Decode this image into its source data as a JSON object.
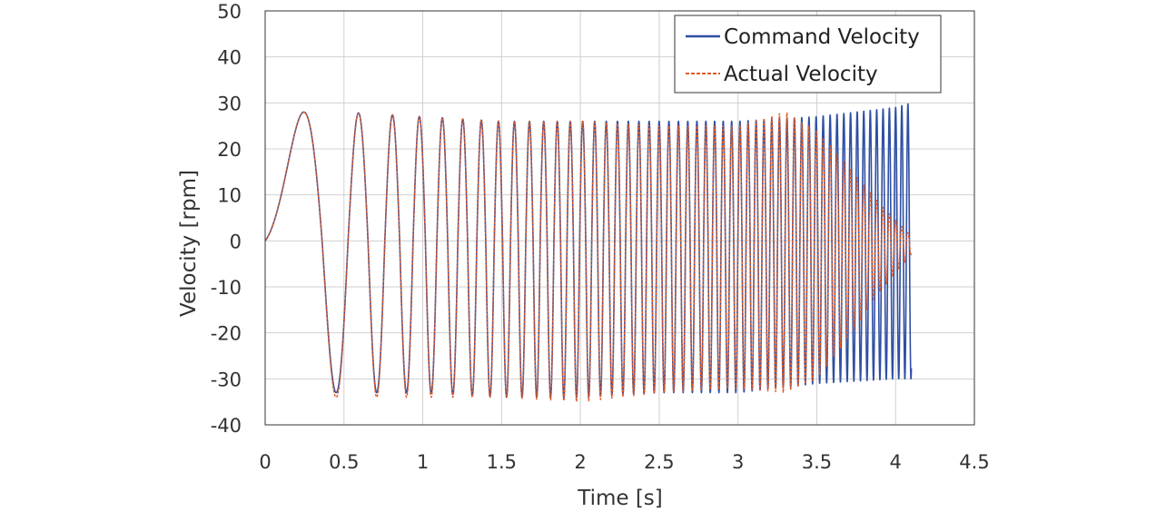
{
  "chart_data": {
    "type": "line",
    "xlabel": "Time [s]",
    "ylabel": "Velocity [rpm]",
    "xlim": [
      0,
      4.5
    ],
    "ylim": [
      -40,
      50
    ],
    "xticks": [
      "0",
      "0.5",
      "1",
      "1.5",
      "2",
      "2.5",
      "3",
      "3.5",
      "4",
      "4.5"
    ],
    "yticks": [
      "50",
      "40",
      "30",
      "20",
      "10",
      "0",
      "-10",
      "-20",
      "-30",
      "-40"
    ],
    "grid": true,
    "legend_position": "top-right",
    "duration": 4.1,
    "series": [
      {
        "name": "Command Velocity",
        "color": "#2E4FA3",
        "style": "solid",
        "envelope_time": [
          0,
          0.5,
          1.0,
          1.5,
          2.0,
          2.5,
          3.0,
          3.5,
          4.0,
          4.1
        ],
        "envelope_max": [
          28,
          28,
          27,
          26,
          26,
          26,
          26,
          27,
          29,
          30
        ],
        "envelope_min": [
          -33,
          -33,
          -33,
          -34,
          -34,
          -33,
          -33,
          -31,
          -30,
          -30
        ]
      },
      {
        "name": "Actual Velocity",
        "color": "#E05A26",
        "style": "dashed",
        "envelope_time": [
          0,
          0.5,
          1.0,
          1.5,
          2.0,
          2.5,
          3.0,
          3.3,
          3.5,
          3.7,
          3.9,
          4.1
        ],
        "envelope_max": [
          28,
          28,
          27,
          26,
          26,
          25,
          25,
          28,
          24,
          16,
          8,
          1
        ],
        "envelope_min": [
          -34,
          -34,
          -34,
          -34,
          -35,
          -33,
          -32,
          -33,
          -30,
          -21,
          -11,
          -3
        ]
      }
    ]
  }
}
